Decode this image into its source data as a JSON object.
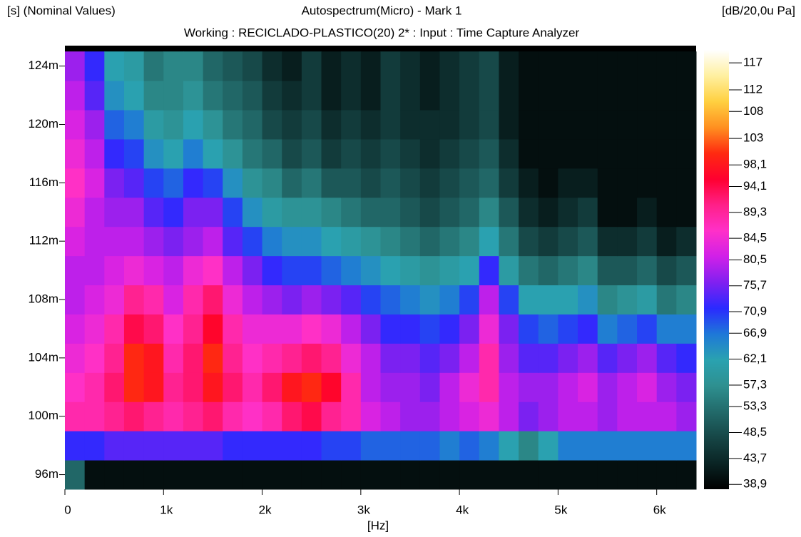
{
  "chart_data": {
    "type": "heatmap",
    "title": "Autospectrum(Micro) - Mark 1",
    "subtitle": "Working : RECICLADO-PLASTICO(20) 2* : Input : Time Capture Analyzer",
    "y_label": "[s] (Nominal Values)",
    "z_label": "[dB/20,0u Pa]",
    "x_label": "[Hz]",
    "xlim": [
      0,
      6400
    ],
    "xticks": [
      0,
      {
        "value": 1000,
        "label": "1k"
      },
      {
        "value": 2000,
        "label": "2k"
      },
      {
        "value": 3000,
        "label": "3k"
      },
      {
        "value": 4000,
        "label": "4k"
      },
      {
        "value": 5000,
        "label": "5k"
      },
      {
        "value": 6000,
        "label": "6k"
      }
    ],
    "ylim": [
      0.095,
      0.1254
    ],
    "yticks": [
      {
        "value": 0.096,
        "label": "96m"
      },
      {
        "value": 0.1,
        "label": "100m"
      },
      {
        "value": 0.104,
        "label": "104m"
      },
      {
        "value": 0.108,
        "label": "108m"
      },
      {
        "value": 0.112,
        "label": "112m"
      },
      {
        "value": 0.116,
        "label": "116m"
      },
      {
        "value": 0.12,
        "label": "120m"
      },
      {
        "value": 0.124,
        "label": "124m"
      }
    ],
    "zlim": [
      38,
      119.4
    ],
    "zticks": [
      117,
      112,
      108,
      103,
      {
        "value": 98.1,
        "label": "98,1"
      },
      {
        "value": 94.1,
        "label": "94,1"
      },
      {
        "value": 89.3,
        "label": "89,3"
      },
      {
        "value": 84.5,
        "label": "84,5"
      },
      {
        "value": 80.5,
        "label": "80,5"
      },
      {
        "value": 75.7,
        "label": "75,7"
      },
      {
        "value": 70.9,
        "label": "70,9"
      },
      {
        "value": 66.9,
        "label": "66,9"
      },
      {
        "value": 62.1,
        "label": "62,1"
      },
      {
        "value": 57.3,
        "label": "57,3"
      },
      {
        "value": 53.3,
        "label": "53,3"
      },
      {
        "value": 48.5,
        "label": "48,5"
      },
      {
        "value": 43.7,
        "label": "43,7"
      },
      {
        "value": 38.9,
        "label": "38,9"
      }
    ],
    "colormap": [
      "#000000",
      "#0a2424",
      "#164646",
      "#226a6a",
      "#2e9090",
      "#2aa2b0",
      "#1e78d8",
      "#2a2aff",
      "#8020f0",
      "#d020e8",
      "#ff30c8",
      "#ff2088",
      "#ff0030",
      "#ff2a10",
      "#ff9020",
      "#ffd040",
      "#fff0a0",
      "#ffffff"
    ],
    "x_bins": [
      0,
      200,
      400,
      600,
      800,
      1000,
      1200,
      1400,
      1600,
      1800,
      2000,
      2200,
      2400,
      2600,
      2800,
      3000,
      3200,
      3400,
      3600,
      3800,
      4000,
      4200,
      4400,
      4600,
      4800,
      5000,
      5200,
      5400,
      5600,
      5800,
      6000,
      6200,
      6400
    ],
    "y_bins": [
      0.095,
      0.097,
      0.099,
      0.101,
      0.103,
      0.105,
      0.107,
      0.109,
      0.111,
      0.113,
      0.115,
      0.117,
      0.119,
      0.121,
      0.123,
      0.125
    ],
    "z": [
      [
        52,
        40,
        40,
        40,
        40,
        40,
        40,
        40,
        40,
        40,
        40,
        40,
        40,
        40,
        40,
        40,
        40,
        40,
        40,
        40,
        40,
        40,
        40,
        40,
        40,
        40,
        40,
        40,
        40,
        40,
        40,
        40
      ],
      [
        72,
        72,
        74,
        74,
        74,
        74,
        74,
        74,
        72,
        72,
        72,
        72,
        72,
        70,
        70,
        68,
        68,
        68,
        68,
        66,
        68,
        66,
        62,
        56,
        62,
        66,
        66,
        66,
        66,
        66,
        66,
        66
      ],
      [
        88,
        88,
        90,
        92,
        90,
        88,
        90,
        92,
        88,
        86,
        88,
        92,
        94,
        90,
        88,
        82,
        80,
        78,
        78,
        80,
        82,
        84,
        80,
        76,
        78,
        80,
        80,
        78,
        80,
        80,
        80,
        78
      ],
      [
        86,
        88,
        92,
        100,
        98,
        90,
        92,
        98,
        92,
        88,
        92,
        98,
        100,
        96,
        88,
        80,
        78,
        78,
        76,
        80,
        84,
        88,
        80,
        78,
        78,
        80,
        82,
        78,
        80,
        82,
        78,
        76
      ],
      [
        84,
        86,
        90,
        100,
        98,
        88,
        92,
        100,
        90,
        86,
        88,
        90,
        92,
        90,
        84,
        80,
        76,
        76,
        74,
        76,
        80,
        88,
        78,
        74,
        74,
        76,
        78,
        74,
        76,
        78,
        74,
        72
      ],
      [
        82,
        84,
        88,
        94,
        92,
        86,
        90,
        96,
        88,
        84,
        84,
        84,
        86,
        84,
        80,
        76,
        72,
        72,
        70,
        72,
        76,
        84,
        76,
        70,
        68,
        70,
        72,
        66,
        68,
        70,
        66,
        66
      ],
      [
        80,
        82,
        84,
        90,
        88,
        82,
        88,
        92,
        84,
        80,
        78,
        76,
        78,
        76,
        74,
        70,
        68,
        66,
        64,
        66,
        70,
        80,
        70,
        62,
        62,
        62,
        64,
        56,
        58,
        60,
        54,
        56
      ],
      [
        80,
        80,
        82,
        84,
        82,
        80,
        84,
        86,
        80,
        76,
        72,
        70,
        70,
        68,
        66,
        64,
        62,
        60,
        58,
        60,
        62,
        72,
        60,
        54,
        52,
        54,
        56,
        50,
        50,
        52,
        48,
        50
      ],
      [
        82,
        80,
        80,
        80,
        78,
        76,
        78,
        80,
        74,
        70,
        66,
        64,
        64,
        62,
        60,
        58,
        56,
        54,
        52,
        54,
        56,
        62,
        54,
        48,
        46,
        48,
        50,
        44,
        44,
        46,
        42,
        44
      ],
      [
        84,
        80,
        78,
        78,
        74,
        72,
        76,
        76,
        70,
        64,
        60,
        58,
        58,
        56,
        54,
        52,
        52,
        50,
        48,
        50,
        52,
        56,
        50,
        44,
        42,
        44,
        46,
        40,
        40,
        42,
        40,
        40
      ],
      [
        86,
        82,
        76,
        74,
        70,
        68,
        72,
        70,
        64,
        58,
        56,
        52,
        54,
        50,
        50,
        48,
        50,
        48,
        46,
        48,
        50,
        52,
        46,
        42,
        40,
        42,
        42,
        40,
        40,
        40,
        40,
        40
      ],
      [
        84,
        80,
        72,
        70,
        64,
        62,
        66,
        62,
        58,
        54,
        52,
        48,
        50,
        46,
        48,
        46,
        48,
        46,
        44,
        46,
        48,
        50,
        44,
        40,
        40,
        40,
        40,
        40,
        40,
        40,
        40,
        40
      ],
      [
        82,
        78,
        68,
        66,
        60,
        58,
        62,
        58,
        54,
        52,
        48,
        46,
        48,
        44,
        46,
        44,
        46,
        44,
        44,
        44,
        46,
        48,
        42,
        40,
        40,
        40,
        40,
        40,
        40,
        40,
        40,
        40
      ],
      [
        80,
        74,
        64,
        62,
        56,
        56,
        58,
        54,
        52,
        50,
        46,
        44,
        46,
        42,
        44,
        42,
        46,
        44,
        42,
        44,
        46,
        48,
        42,
        40,
        40,
        40,
        40,
        40,
        40,
        40,
        40,
        40
      ],
      [
        78,
        72,
        62,
        60,
        54,
        56,
        56,
        52,
        50,
        48,
        44,
        42,
        46,
        42,
        44,
        42,
        46,
        44,
        42,
        44,
        46,
        48,
        42,
        40,
        40,
        40,
        40,
        40,
        40,
        40,
        40,
        40
      ]
    ]
  }
}
